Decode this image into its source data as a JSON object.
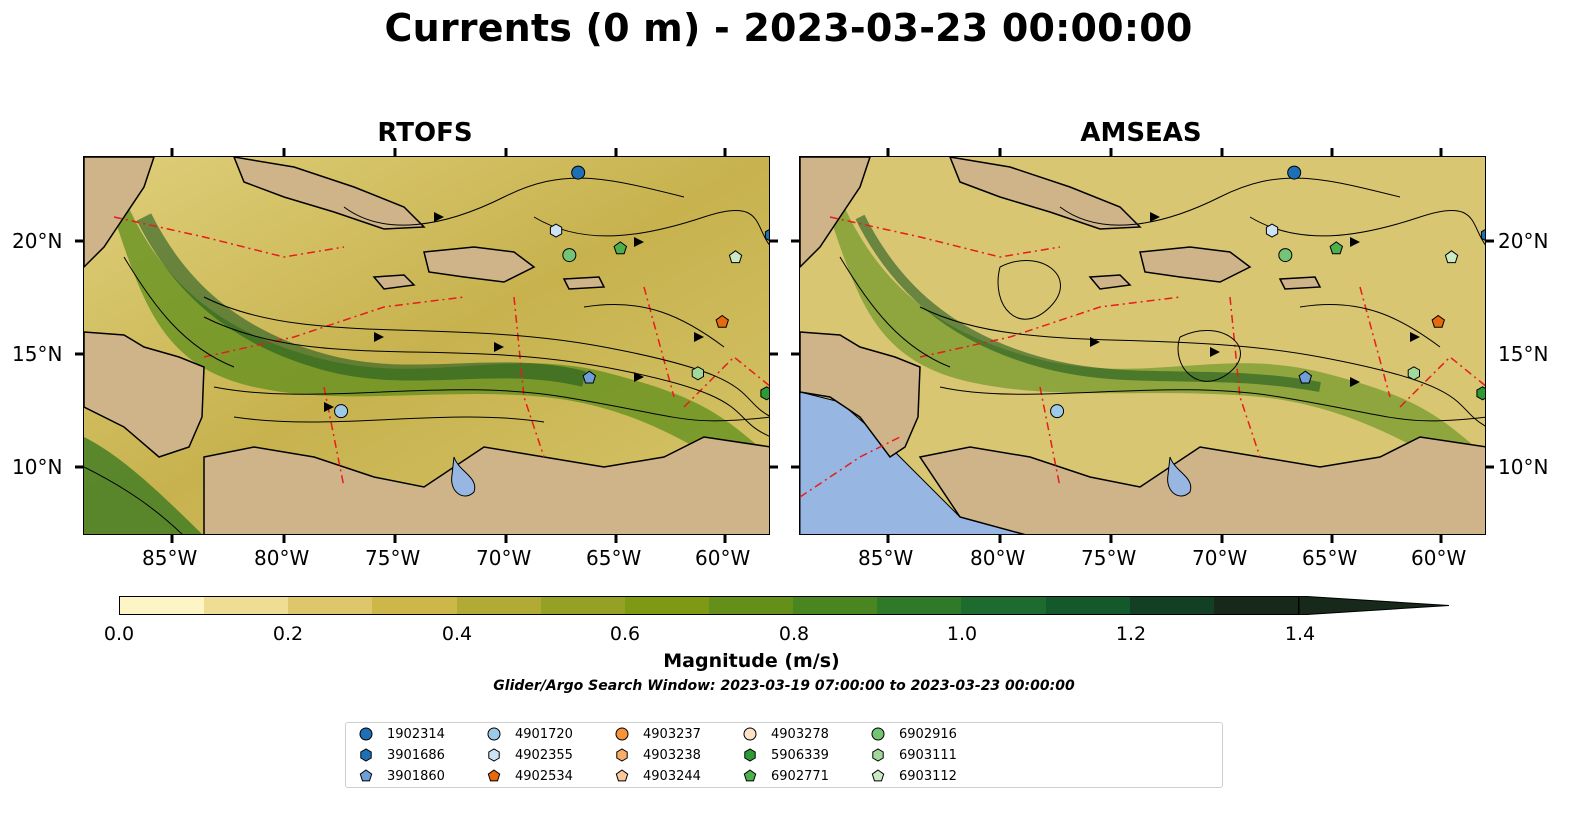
{
  "title": "Currents (0 m) - 2023-03-23 00:00:00",
  "panels": [
    {
      "title": "RTOFS"
    },
    {
      "title": "AMSEAS"
    }
  ],
  "x_ticks": [
    "85°W",
    "80°W",
    "75°W",
    "70°W",
    "65°W",
    "60°W"
  ],
  "y_ticks": [
    "20°N",
    "15°N",
    "10°N"
  ],
  "colorbar": {
    "label": "Magnitude (m/s)",
    "ticks": [
      "0.0",
      "0.2",
      "0.4",
      "0.6",
      "0.8",
      "1.0",
      "1.2",
      "1.4"
    ],
    "colors": [
      "#fdf6c4",
      "#eedd93",
      "#dec66a",
      "#cdb748",
      "#b1aa35",
      "#95a124",
      "#7e9914",
      "#64901a",
      "#4a8620",
      "#2f7a28",
      "#1d6b2f",
      "#14592c",
      "#133f25",
      "#16291a"
    ],
    "extend_color": "#16291a"
  },
  "search_window": "Glider/Argo Search Window: 2023-03-19 07:00:00 to 2023-03-23 00:00:00",
  "legend": [
    {
      "label": "1902314",
      "marker": "circle",
      "color": "#1f6fb4"
    },
    {
      "label": "3901686",
      "marker": "hexagon",
      "color": "#1f6fb4"
    },
    {
      "label": "3901860",
      "marker": "pentagon",
      "color": "#6f9fd8"
    },
    {
      "label": "4901720",
      "marker": "circle",
      "color": "#9ecae9"
    },
    {
      "label": "4902355",
      "marker": "hexagon",
      "color": "#cde3f4"
    },
    {
      "label": "4902534",
      "marker": "pentagon",
      "color": "#e6690c"
    },
    {
      "label": "4903237",
      "marker": "circle",
      "color": "#f79433"
    },
    {
      "label": "4903238",
      "marker": "hexagon",
      "color": "#f7ae6b"
    },
    {
      "label": "4903244",
      "marker": "pentagon",
      "color": "#fbc99a"
    },
    {
      "label": "4903278",
      "marker": "circle",
      "color": "#fde2c6"
    },
    {
      "label": "5906339",
      "marker": "hexagon",
      "color": "#2e9a36"
    },
    {
      "label": "6902771",
      "marker": "pentagon",
      "color": "#4cb04c"
    },
    {
      "label": "6902916",
      "marker": "circle",
      "color": "#74c476"
    },
    {
      "label": "6903111",
      "marker": "hexagon",
      "color": "#a1d99b"
    },
    {
      "label": "6903112",
      "marker": "pentagon",
      "color": "#cbeac4"
    }
  ],
  "floats_rtofs": [
    {
      "id": "1902314",
      "lon": -66.7,
      "lat": 23.3
    },
    {
      "id": "3901686",
      "lon": -58.0,
      "lat": 20.5
    },
    {
      "id": "4902355",
      "lon": -67.7,
      "lat": 20.7
    },
    {
      "id": "6902916",
      "lon": -67.1,
      "lat": 19.6
    },
    {
      "id": "6902771",
      "lon": -64.8,
      "lat": 19.9
    },
    {
      "id": "6903112",
      "lon": -59.6,
      "lat": 19.5
    },
    {
      "id": "4902534",
      "lon": -60.2,
      "lat": 16.6
    },
    {
      "id": "3901860",
      "lon": -66.2,
      "lat": 14.1
    },
    {
      "id": "6903111",
      "lon": -61.3,
      "lat": 14.3
    },
    {
      "id": "5906339",
      "lon": -58.2,
      "lat": 13.4
    },
    {
      "id": "4901720",
      "lon": -77.4,
      "lat": 12.6
    }
  ],
  "floats_amseas": [
    {
      "id": "1902314",
      "lon": -66.7,
      "lat": 23.3
    },
    {
      "id": "3901686",
      "lon": -58.0,
      "lat": 20.5
    },
    {
      "id": "4902355",
      "lon": -67.7,
      "lat": 20.7
    },
    {
      "id": "6902916",
      "lon": -67.1,
      "lat": 19.6
    },
    {
      "id": "6902771",
      "lon": -64.8,
      "lat": 19.9
    },
    {
      "id": "6903112",
      "lon": -59.6,
      "lat": 19.5
    },
    {
      "id": "4902534",
      "lon": -60.2,
      "lat": 16.6
    },
    {
      "id": "3901860",
      "lon": -66.2,
      "lat": 14.1
    },
    {
      "id": "6903111",
      "lon": -61.3,
      "lat": 14.3
    },
    {
      "id": "5906339",
      "lon": -58.2,
      "lat": 13.4
    },
    {
      "id": "4901720",
      "lon": -77.4,
      "lat": 12.6
    }
  ]
}
